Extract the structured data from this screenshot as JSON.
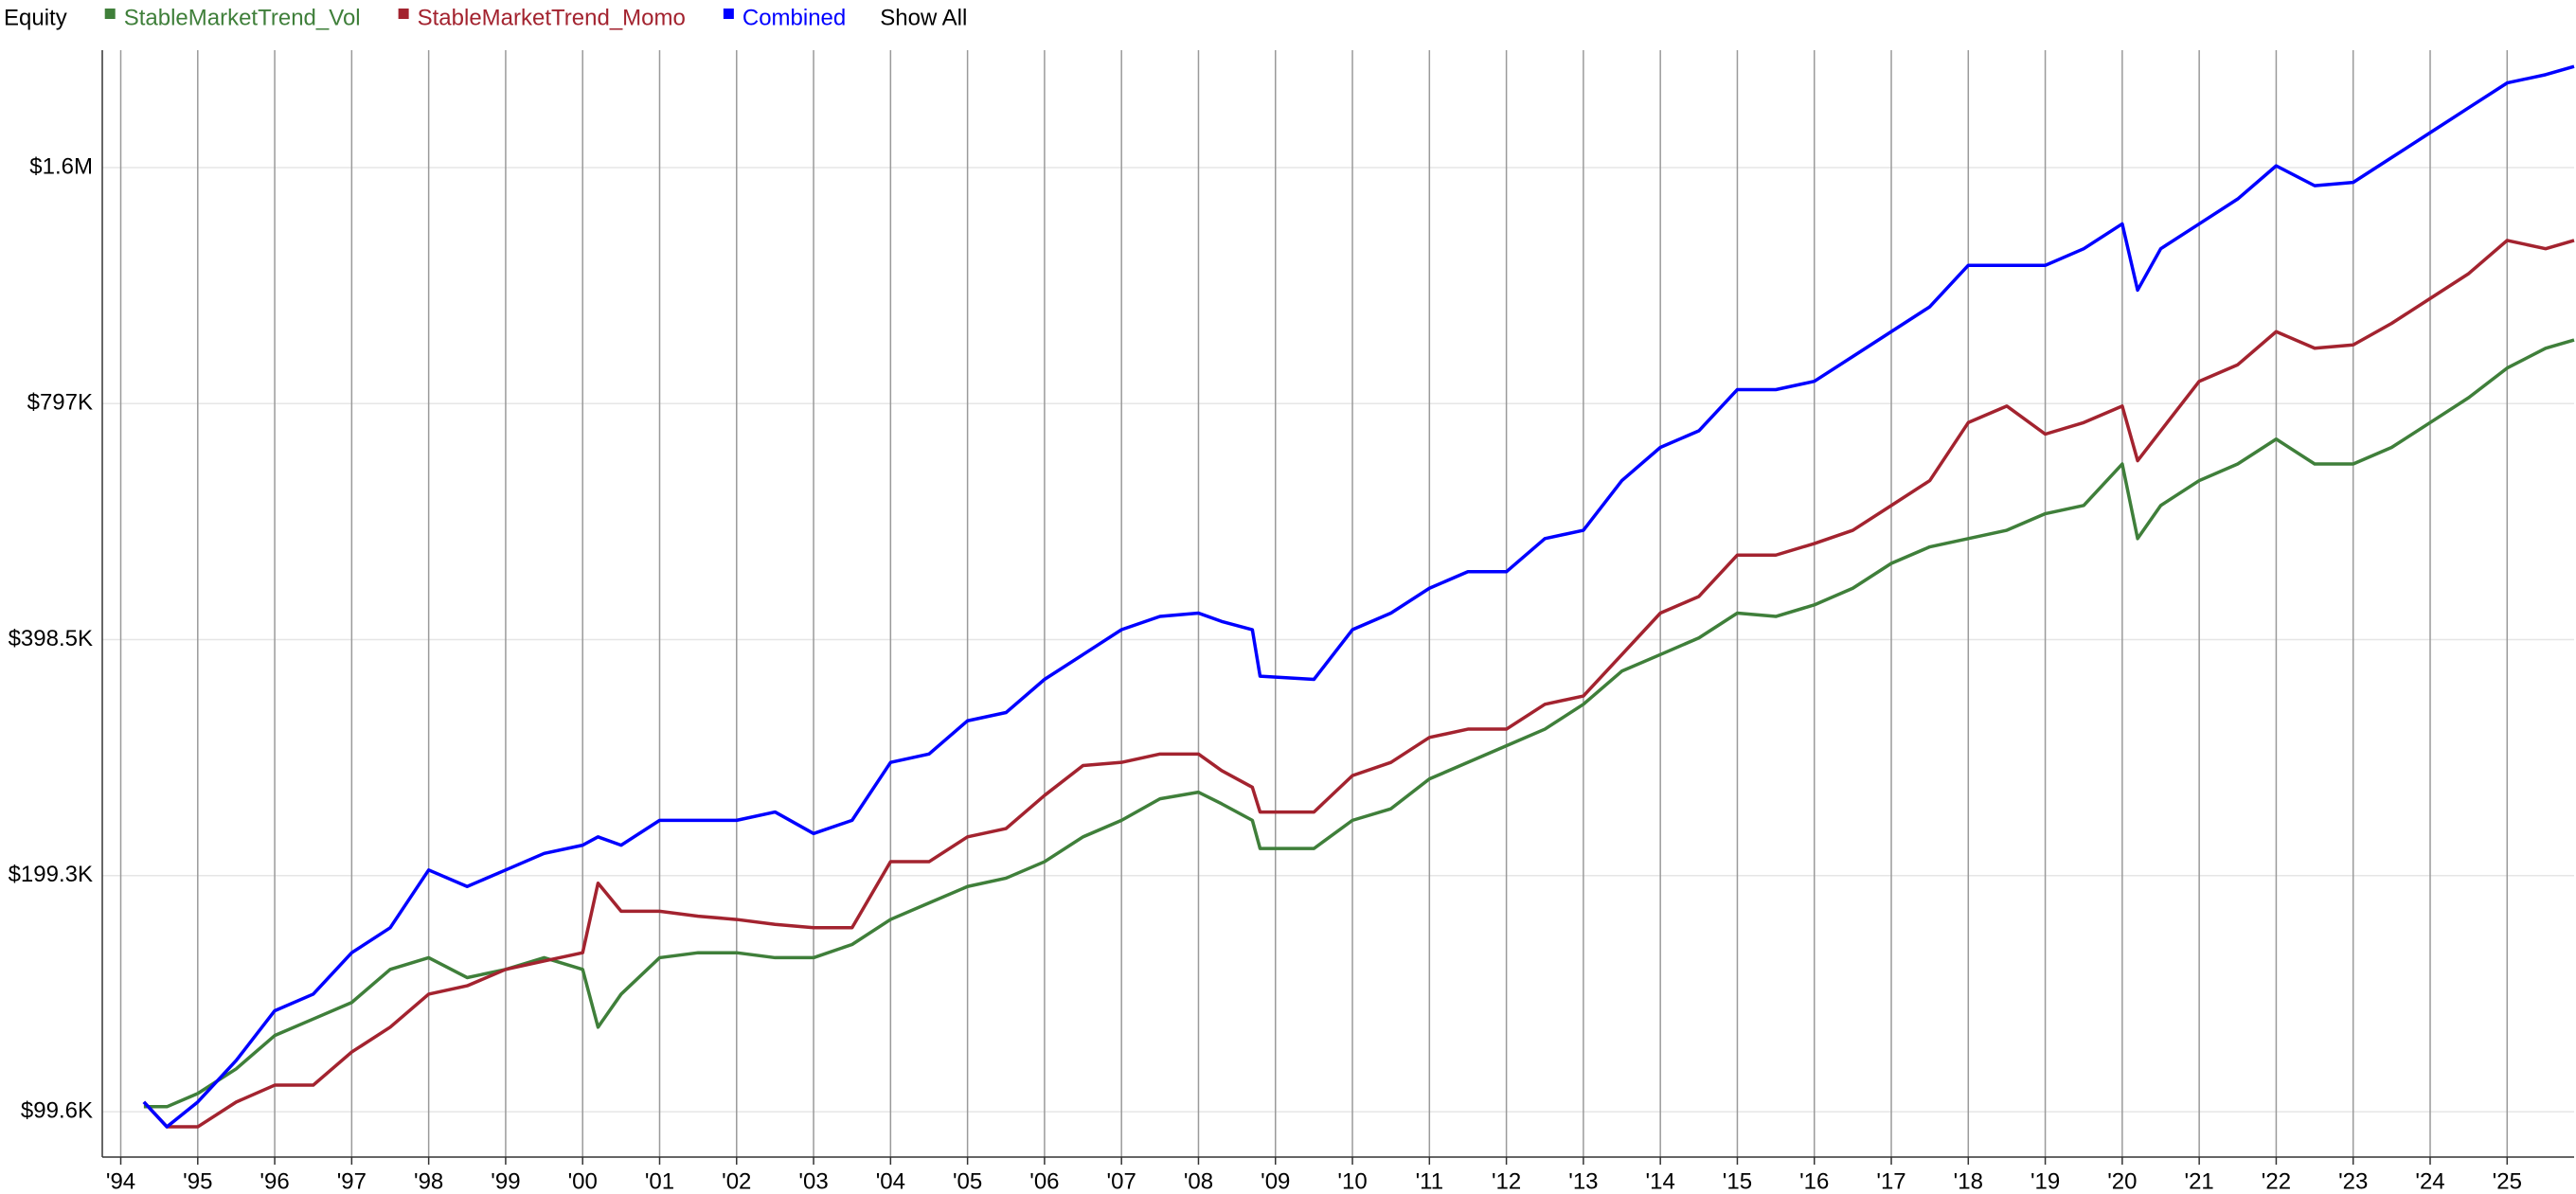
{
  "chart_data": {
    "type": "line",
    "legend_title": "Equity",
    "show_all_label": "Show All",
    "log_scale": true,
    "grid": true,
    "legend_position": "top-left",
    "xlim": [
      1993.76,
      2025.87
    ],
    "ylim": [
      87200,
      2250000
    ],
    "yticks": [
      {
        "value": 99600,
        "label": "$99.6K"
      },
      {
        "value": 199300,
        "label": "$199.3K"
      },
      {
        "value": 398500,
        "label": "$398.5K"
      },
      {
        "value": 797000,
        "label": "$797K"
      },
      {
        "value": 1594000,
        "label": "$1.6M"
      }
    ],
    "xticks": [
      {
        "value": 1994,
        "label": "'94"
      },
      {
        "value": 1995,
        "label": "'95"
      },
      {
        "value": 1996,
        "label": "'96"
      },
      {
        "value": 1997,
        "label": "'97"
      },
      {
        "value": 1998,
        "label": "'98"
      },
      {
        "value": 1999,
        "label": "'99"
      },
      {
        "value": 2000,
        "label": "'00"
      },
      {
        "value": 2001,
        "label": "'01"
      },
      {
        "value": 2002,
        "label": "'02"
      },
      {
        "value": 2003,
        "label": "'03"
      },
      {
        "value": 2004,
        "label": "'04"
      },
      {
        "value": 2005,
        "label": "'05"
      },
      {
        "value": 2006,
        "label": "'06"
      },
      {
        "value": 2007,
        "label": "'07"
      },
      {
        "value": 2008,
        "label": "'08"
      },
      {
        "value": 2009,
        "label": "'09"
      },
      {
        "value": 2010,
        "label": "'10"
      },
      {
        "value": 2011,
        "label": "'11"
      },
      {
        "value": 2012,
        "label": "'12"
      },
      {
        "value": 2013,
        "label": "'13"
      },
      {
        "value": 2014,
        "label": "'14"
      },
      {
        "value": 2015,
        "label": "'15"
      },
      {
        "value": 2016,
        "label": "'16"
      },
      {
        "value": 2017,
        "label": "'17"
      },
      {
        "value": 2018,
        "label": "'18"
      },
      {
        "value": 2019,
        "label": "'19"
      },
      {
        "value": 2020,
        "label": "'20"
      },
      {
        "value": 2021,
        "label": "'21"
      },
      {
        "value": 2022,
        "label": "'22"
      },
      {
        "value": 2023,
        "label": "'23"
      },
      {
        "value": 2024,
        "label": "'24"
      },
      {
        "value": 2025,
        "label": "'25"
      }
    ],
    "x": [
      1994.3,
      1994.6,
      1995,
      1995.5,
      1996,
      1996.5,
      1997,
      1997.5,
      1998,
      1998.5,
      1999,
      1999.5,
      2000,
      2000.2,
      2000.5,
      2001,
      2001.5,
      2002,
      2002.5,
      2003,
      2003.5,
      2004,
      2004.5,
      2005,
      2005.5,
      2006,
      2006.5,
      2007,
      2007.5,
      2008,
      2008.3,
      2008.7,
      2008.8,
      2009.5,
      2010,
      2010.5,
      2011,
      2011.5,
      2012,
      2012.5,
      2013,
      2013.5,
      2014,
      2014.5,
      2015,
      2015.5,
      2016,
      2016.5,
      2017,
      2017.5,
      2018,
      2018.5,
      2019,
      2019.5,
      2020,
      2020.2,
      2020.5,
      2021,
      2021.5,
      2022,
      2022.5,
      2023,
      2023.5,
      2024,
      2024.5,
      2025,
      2025.5,
      2025.87
    ],
    "series": [
      {
        "name": "StableMarketTrend_Vol",
        "color": "#3f7f3a",
        "values": [
          101100,
          101100,
          105100,
          113000,
          124600,
          130800,
          137300,
          151300,
          156600,
          147700,
          151300,
          156600,
          151300,
          127700,
          140700,
          156600,
          158900,
          158900,
          156600,
          156600,
          162800,
          175200,
          183900,
          193000,
          197800,
          207600,
          223300,
          234400,
          249700,
          254600,
          246100,
          234400,
          215800,
          215800,
          234400,
          242500,
          264700,
          277900,
          291800,
          306400,
          329600,
          363300,
          381400,
          400500,
          430800,
          426600,
          441300,
          463400,
          498500,
          523300,
          536200,
          549400,
          576800,
          590900,
          667500,
          536200,
          590900,
          635700,
          667500,
          718100,
          667500,
          667500,
          700800,
          753800,
          810900,
          884600,
          937700,
          960800
        ]
      },
      {
        "name": "StableMarketTrend_Momo",
        "color": "#a3232f",
        "values": [
          102500,
          95300,
          95300,
          102500,
          107700,
          107700,
          118700,
          127700,
          140700,
          144200,
          151300,
          155100,
          158900,
          194900,
          179500,
          179500,
          176900,
          175200,
          172700,
          171000,
          171000,
          207600,
          207600,
          223300,
          228800,
          252200,
          275300,
          277900,
          284800,
          284800,
          271300,
          258300,
          240200,
          240200,
          267300,
          277900,
          299000,
          306400,
          306400,
          329600,
          337700,
          381400,
          430800,
          452300,
          510800,
          510800,
          528400,
          549400,
          590900,
          635700,
          753800,
          791300,
          728600,
          753800,
          791300,
          674000,
          735700,
          850900,
          893300,
          984500,
          937700,
          946900,
          1008800,
          1085200,
          1167400,
          1286900,
          1256000,
          1286900
        ]
      },
      {
        "name": "Combined",
        "color": "#0000ff",
        "values": [
          102500,
          95300,
          102500,
          115800,
          134000,
          140700,
          158900,
          171000,
          202600,
          193000,
          202600,
          212700,
          217900,
          223300,
          217900,
          234400,
          234400,
          234400,
          240200,
          225500,
          234400,
          277900,
          284800,
          314000,
          321700,
          354600,
          381400,
          410300,
          426600,
          430800,
          420400,
          410300,
          358000,
          354600,
          410300,
          430800,
          463400,
          486500,
          486500,
          536200,
          549400,
          635700,
          700800,
          735700,
          830400,
          830400,
          850900,
          915200,
          984500,
          1059100,
          1196100,
          1196100,
          1196100,
          1256000,
          1351100,
          1112000,
          1256000,
          1351100,
          1453500,
          1602200,
          1511300,
          1526000,
          1641600,
          1765900,
          1899800,
          2043600,
          2093900,
          2145300
        ]
      }
    ]
  }
}
